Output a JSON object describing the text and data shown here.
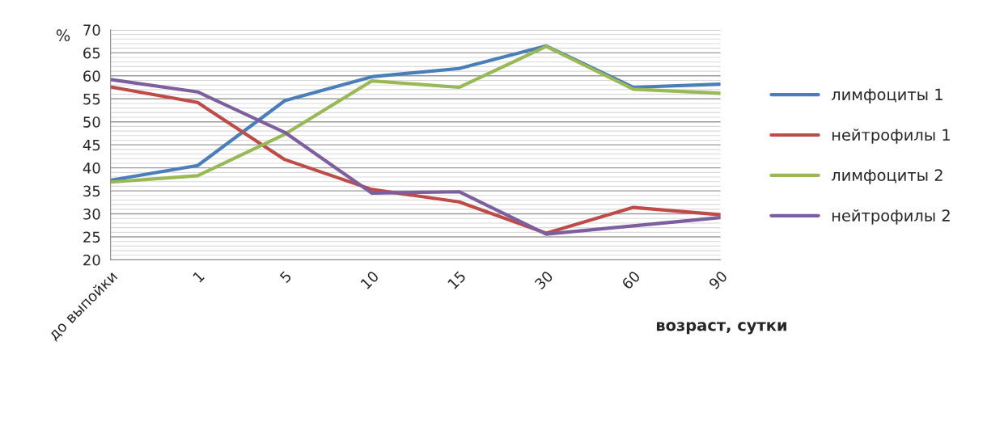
{
  "chart_data": {
    "type": "line",
    "ylabel": "%",
    "xlabel": "возраст, сутки",
    "categories": [
      "до выпойки",
      "1",
      "5",
      "10",
      "15",
      "30",
      "60",
      "90"
    ],
    "ylim": [
      20,
      70
    ],
    "yticks": [
      20,
      25,
      30,
      35,
      40,
      45,
      50,
      55,
      60,
      65,
      70
    ],
    "grid": "y",
    "legend": "right",
    "marker": "none",
    "line_style": "solid",
    "series": [
      {
        "name": "лимфоциты 1",
        "color": "#4a7ebb",
        "values": [
          37.3,
          40.5,
          54.6,
          59.8,
          61.6,
          66.5,
          57.5,
          58.2
        ]
      },
      {
        "name": "нейтрофилы 1",
        "color": "#be4b48",
        "values": [
          57.6,
          54.2,
          41.8,
          35.3,
          32.6,
          25.8,
          31.4,
          29.8
        ]
      },
      {
        "name": "лимфоциты 2",
        "color": "#98b954",
        "values": [
          36.9,
          38.3,
          47.3,
          58.9,
          57.5,
          66.4,
          57.1,
          56.2
        ]
      },
      {
        "name": "нейтрофилы 2",
        "color": "#7d5fa0",
        "values": [
          59.2,
          56.5,
          47.7,
          34.5,
          34.8,
          25.6,
          27.4,
          29.2
        ]
      }
    ]
  }
}
